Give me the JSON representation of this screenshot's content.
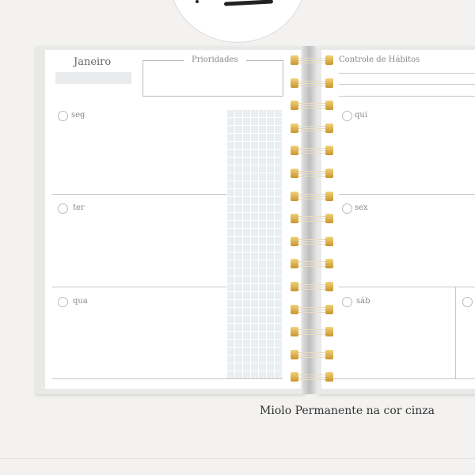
{
  "left_page": {
    "month": "Janeiro",
    "priorities_label": "Prioridades",
    "days": [
      "seg",
      "ter",
      "qua"
    ]
  },
  "right_page": {
    "habits_label": "Controle de Hábitos",
    "days": [
      "qui",
      "sex",
      "sáb"
    ]
  },
  "caption": "Miolo Permanente na cor cinza",
  "colors": {
    "ring": "#d4a43c",
    "grid": "#e9eef0",
    "background": "#f3f2f0"
  }
}
